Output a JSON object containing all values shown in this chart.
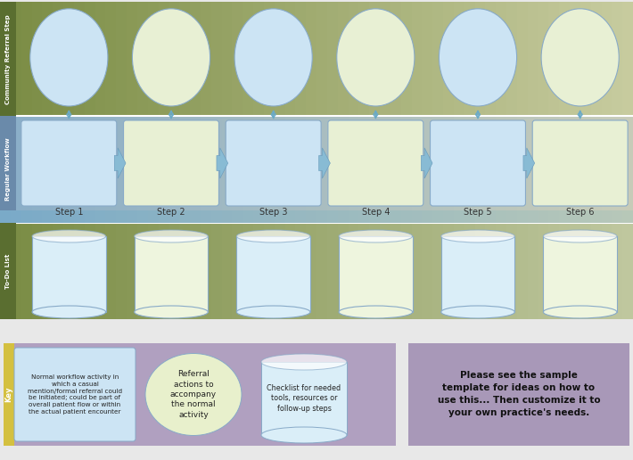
{
  "fig_width": 7.1,
  "fig_height": 5.16,
  "dpi": 100,
  "steps": [
    "Step 1",
    "Step 2",
    "Step 3",
    "Step 4",
    "Step 5",
    "Step 6"
  ],
  "step_colors_rect": [
    "#cce4f4",
    "#e8f0d4",
    "#cce4f4",
    "#e8f0d4",
    "#cce4f4",
    "#e8f0d4"
  ],
  "step_colors_circle": [
    "#cce4f4",
    "#e8f0d4",
    "#cce4f4",
    "#e8f0d4",
    "#cce4f4",
    "#e8f0d4"
  ],
  "step_colors_cylinder": [
    "#daeef8",
    "#eef5de",
    "#daeef8",
    "#eef5de",
    "#daeef8",
    "#eef5de"
  ],
  "row_labels": [
    "Community Referral Step",
    "Regular Workflow",
    "To-Do List"
  ],
  "bg_top_left": "#7a8c44",
  "bg_top_right": "#c8cca0",
  "bg_mid_left": "#8aaec8",
  "bg_mid_right": "#c8ccb8",
  "bg_bot_left": "#7a8c44",
  "bg_bot_right": "#c0c8a0",
  "label_top_color": "#5a6e30",
  "label_mid_color": "#6a8aaa",
  "label_bot_color": "#5a6e30",
  "border_color": "#88aac8",
  "arrow_color": "#6aaac8",
  "chevron_color": "#88bbd4",
  "key_bg": "#b0a0c0",
  "key_yellow": "#d4c040",
  "key_rect_color": "#cce4f4",
  "key_circle_color": "#e8f0cc",
  "key_cylinder_color": "#daeef8",
  "key_text1": "Normal workflow activity in\nwhich a casual\nmention/formal referral could\nbe initiated; could be part of\noverall patient flow or within\nthe actual patient encounter",
  "key_text2": "Referral\nactions to\naccompany\nthe normal\nactivity",
  "key_text3": "Checklist for needed\ntools, resources or\nfollow-up steps",
  "note_bg": "#a898b8",
  "note_text": "Please see the sample\ntemplate for ideas on how to\nuse this... Then customize it to\nyour own practice's needs.",
  "fig_bg": "#e8e8e8"
}
